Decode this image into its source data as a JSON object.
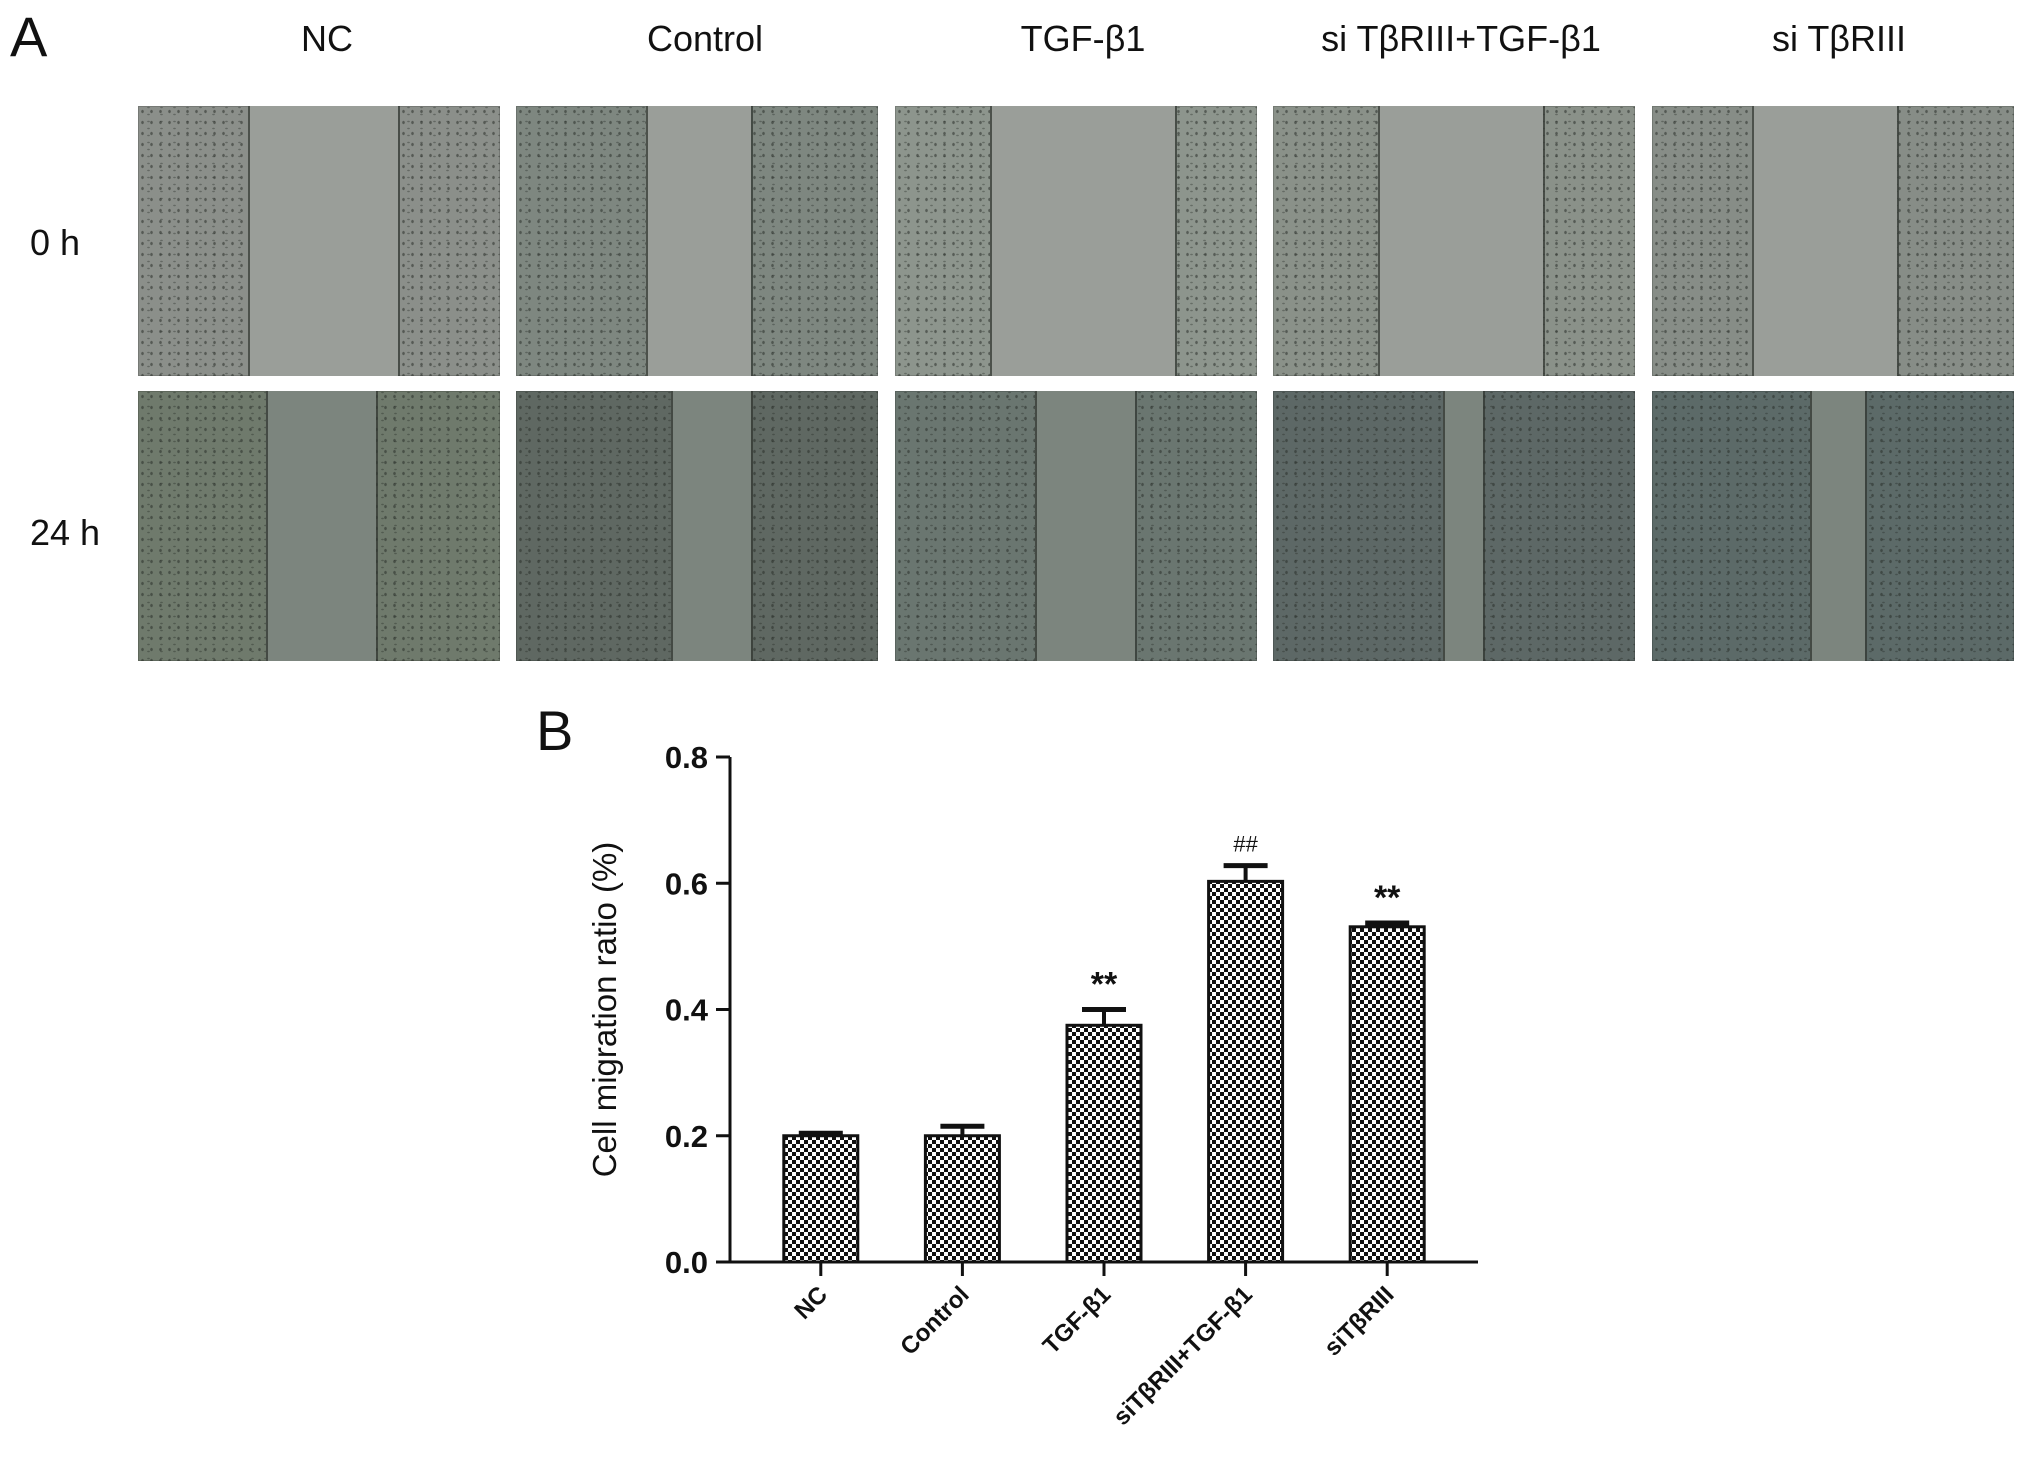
{
  "panel_a": {
    "letter": "A",
    "columns": [
      "NC",
      "Control",
      "TGF-β1",
      "si TβRIII+TGF-β1",
      "si TβRIII"
    ],
    "rows": [
      "0 h",
      "24 h"
    ],
    "tile_colors": {
      "row0": [
        "#8b8f8a",
        "#7e8780",
        "#8d958d",
        "#8a9189",
        "#878d87"
      ],
      "row1": [
        "#6f7a6c",
        "#5f6862",
        "#6a7670",
        "#5d6866",
        "#5c6a68"
      ],
      "gap_row0": "#9a9e99",
      "gap_row1": "#7c857e"
    }
  },
  "chart_data": {
    "type": "bar",
    "panel_letter": "B",
    "categories": [
      "NC",
      "Control",
      "TGF-β1",
      "siTβRIII+TGF-β1",
      "siTβRIII"
    ],
    "values": [
      0.2,
      0.2,
      0.375,
      0.603,
      0.531
    ],
    "errors": [
      0.004,
      0.015,
      0.025,
      0.025,
      0.006
    ],
    "annotations": [
      "",
      "",
      "**",
      "##",
      "**"
    ],
    "ylabel": "Cell migration ratio (%)",
    "xlabel": "",
    "ylim": [
      0.0,
      0.8
    ],
    "yticks": [
      "0.0",
      "0.2",
      "0.4",
      "0.6",
      "0.8"
    ],
    "bar_pattern": "checkerboard",
    "grid": false
  }
}
